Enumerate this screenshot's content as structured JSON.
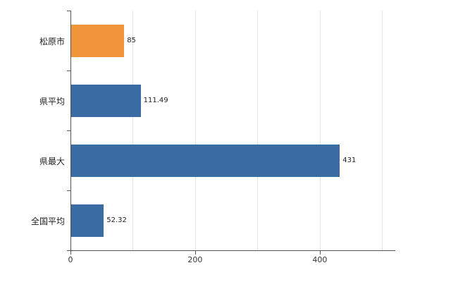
{
  "chart_data": {
    "type": "bar",
    "orientation": "horizontal",
    "title": "",
    "xlabel": "",
    "ylabel": "",
    "categories": [
      "松原市",
      "県平均",
      "県最大",
      "全国平均"
    ],
    "values": [
      85,
      111.49,
      431,
      52.32
    ],
    "value_labels": [
      "85",
      "111.49",
      "431",
      "52.32"
    ],
    "bar_colors": [
      "#ef9439",
      "#3a6ba3",
      "#3a6ba3",
      "#3a6ba3"
    ],
    "xlim": [
      0,
      520
    ],
    "xticks": [
      0,
      200,
      400
    ],
    "xtick_labels": [
      "0",
      "200",
      "400"
    ],
    "gridline_values": [
      100,
      200,
      300,
      400,
      500
    ],
    "grid": "vertical-light",
    "legend": "none"
  },
  "colors": {
    "highlight_bar": "#ef9439",
    "default_bar": "#3a6ba3",
    "gridline": "#e4e4e4",
    "axis": "#555555",
    "text": "#222222"
  }
}
